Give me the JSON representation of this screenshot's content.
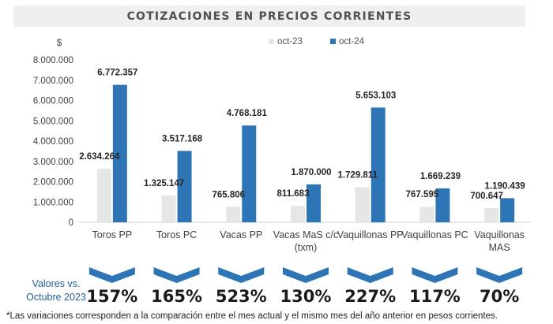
{
  "title": "COTIZACIONES EN PRECIOS CORRIENTES",
  "chart_data": {
    "type": "bar",
    "ylabel": "$",
    "ylim": [
      0,
      8000000
    ],
    "yticks": [
      "0",
      "1.000.000",
      "2.000.000",
      "3.000.000",
      "4.000.000",
      "5.000.000",
      "6.000.000",
      "7.000.000",
      "8.000.000"
    ],
    "ytick_values": [
      0,
      1000000,
      2000000,
      3000000,
      4000000,
      5000000,
      6000000,
      7000000,
      8000000
    ],
    "legend_position": "top-right",
    "grid": false,
    "categories": [
      "Toros PP",
      "Toros PC",
      "Vacas PP",
      "Vacas MaS c/c (txm)",
      "Vaquillonas PP",
      "Vaquillonas PC",
      "Vaquillonas MAS"
    ],
    "category_lines": [
      [
        "Toros PP"
      ],
      [
        "Toros PC"
      ],
      [
        "Vacas PP"
      ],
      [
        "Vacas MaS c/c",
        "(txm)"
      ],
      [
        "Vaquillonas PP"
      ],
      [
        "Vaquillonas PC"
      ],
      [
        "Vaquillonas",
        "MAS"
      ]
    ],
    "series": [
      {
        "name": "oct-23",
        "color": "#e6e6e6",
        "values": [
          2634264,
          1325147,
          765806,
          811683,
          1729811,
          767595,
          700647
        ],
        "labels": [
          "2.634.264",
          "1.325.147",
          "765.806",
          "811.683",
          "1.729.811",
          "767.595",
          "700.647"
        ]
      },
      {
        "name": "oct-24",
        "color": "#2e75b6",
        "values": [
          6772357,
          3517168,
          4768181,
          1870000,
          5653103,
          1669239,
          1190439
        ],
        "labels": [
          "6.772.357",
          "3.517.168",
          "4.768.181",
          "1.870.000",
          "5.653.103",
          "1.669.239",
          "1.190.439"
        ]
      }
    ]
  },
  "variations": {
    "label_line1": "Valores vs.",
    "label_line2": "Octubre 2023",
    "values": [
      "157%",
      "165%",
      "523%",
      "130%",
      "227%",
      "117%",
      "70%"
    ],
    "chevron_color": "#2e75b6"
  },
  "footnote": "*Las variaciones corresponden a la comparación entre el mes actual y el mismo mes del año anterior en pesos corrientes."
}
